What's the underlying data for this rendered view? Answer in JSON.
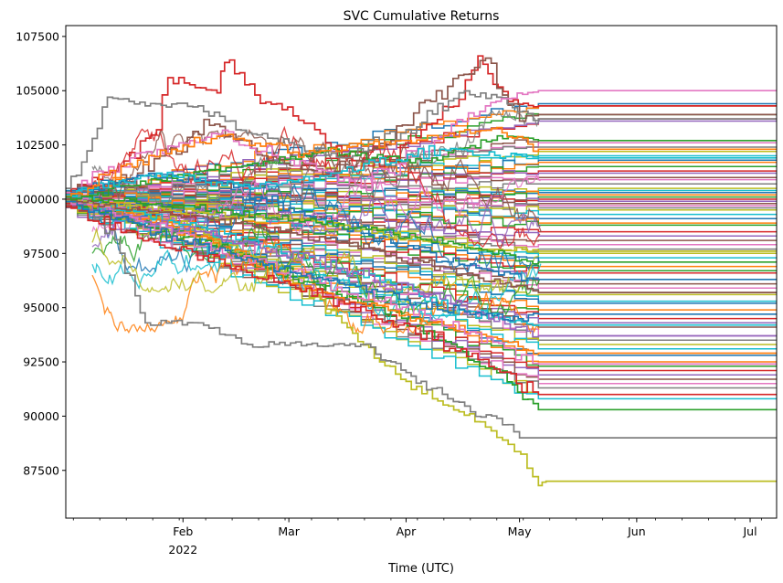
{
  "chart_data": {
    "type": "line",
    "title": "SVC Cumulative Returns",
    "xlabel": "Time (UTC)",
    "ylabel": "",
    "ylim": [
      85300,
      108000
    ],
    "xlim": [
      "2022-01-01",
      "2022-07-08"
    ],
    "yticks": [
      {
        "value": 87500,
        "label": "87500"
      },
      {
        "value": 90000,
        "label": "90000"
      },
      {
        "value": 92500,
        "label": "92500"
      },
      {
        "value": 95000,
        "label": "95000"
      },
      {
        "value": 97500,
        "label": "97500"
      },
      {
        "value": 100000,
        "label": "100000"
      },
      {
        "value": 102500,
        "label": "102500"
      },
      {
        "value": 105000,
        "label": "105000"
      },
      {
        "value": 107500,
        "label": "107500"
      }
    ],
    "xticks": [
      {
        "date": "2022-02-01",
        "label": "Feb",
        "sublabel": "2022"
      },
      {
        "date": "2022-03-01",
        "label": "Mar",
        "sublabel": ""
      },
      {
        "date": "2022-04-01",
        "label": "Apr",
        "sublabel": ""
      },
      {
        "date": "2022-05-01",
        "label": "May",
        "sublabel": ""
      },
      {
        "date": "2022-06-01",
        "label": "Jun",
        "sublabel": ""
      },
      {
        "date": "2022-07-01",
        "label": "Jul",
        "sublabel": ""
      }
    ],
    "grid": false,
    "legend": "none",
    "palette": [
      "#1f77b4",
      "#ff7f0e",
      "#2ca02c",
      "#d62728",
      "#9467bd",
      "#8c564b",
      "#e377c2",
      "#7f7f7f",
      "#bcbd22",
      "#17becf"
    ],
    "series": [
      {
        "color": "#bcbd22",
        "points": [
          [
            "2022-01-01",
            100000
          ],
          [
            "2022-01-20",
            99400
          ],
          [
            "2022-02-05",
            98600
          ],
          [
            "2022-02-20",
            97300
          ],
          [
            "2022-03-05",
            96000
          ],
          [
            "2022-03-15",
            94300
          ],
          [
            "2022-03-25",
            92500
          ],
          [
            "2022-04-01",
            91600
          ],
          [
            "2022-04-08",
            90800
          ],
          [
            "2022-04-15",
            90200
          ],
          [
            "2022-04-22",
            89500
          ],
          [
            "2022-04-28",
            88700
          ],
          [
            "2022-05-03",
            87600
          ],
          [
            "2022-05-06",
            86800
          ],
          [
            "2022-05-08",
            87000
          ],
          [
            "2022-07-08",
            87000
          ]
        ]
      },
      {
        "color": "#7f7f7f",
        "points": [
          [
            "2022-01-01",
            100300
          ],
          [
            "2022-01-10",
            99200
          ],
          [
            "2022-01-18",
            96500
          ],
          [
            "2022-01-22",
            94300
          ],
          [
            "2022-02-05",
            94300
          ],
          [
            "2022-02-15",
            93600
          ],
          [
            "2022-02-18",
            93300
          ],
          [
            "2022-03-20",
            93300
          ],
          [
            "2022-03-28",
            92500
          ],
          [
            "2022-04-05",
            91600
          ],
          [
            "2022-04-12",
            90800
          ],
          [
            "2022-04-18",
            90200
          ],
          [
            "2022-04-25",
            89900
          ],
          [
            "2022-05-01",
            89000
          ],
          [
            "2022-07-08",
            89000
          ]
        ]
      },
      {
        "color": "#2ca02c",
        "points": [
          [
            "2022-01-01",
            100100
          ],
          [
            "2022-01-20",
            98800
          ],
          [
            "2022-02-10",
            97800
          ],
          [
            "2022-03-05",
            96200
          ],
          [
            "2022-03-25",
            95000
          ],
          [
            "2022-04-10",
            93500
          ],
          [
            "2022-04-25",
            92000
          ],
          [
            "2022-05-06",
            90300
          ],
          [
            "2022-07-08",
            90300
          ]
        ]
      },
      {
        "color": "#d62728",
        "points": [
          [
            "2022-01-01",
            100200
          ],
          [
            "2022-01-15",
            101500
          ],
          [
            "2022-01-25",
            103200
          ],
          [
            "2022-01-28",
            105600
          ],
          [
            "2022-02-10",
            104900
          ],
          [
            "2022-02-12",
            106300
          ],
          [
            "2022-02-20",
            104800
          ],
          [
            "2022-03-05",
            103500
          ],
          [
            "2022-03-15",
            102000
          ],
          [
            "2022-03-25",
            101500
          ],
          [
            "2022-04-05",
            103200
          ],
          [
            "2022-04-15",
            104600
          ],
          [
            "2022-04-20",
            106600
          ],
          [
            "2022-04-28",
            104500
          ],
          [
            "2022-05-06",
            104300
          ],
          [
            "2022-07-08",
            104300
          ]
        ]
      },
      {
        "color": "#8c564b",
        "points": [
          [
            "2022-01-01",
            100000
          ],
          [
            "2022-01-20",
            101200
          ],
          [
            "2022-02-08",
            103400
          ],
          [
            "2022-02-22",
            102000
          ],
          [
            "2022-03-10",
            101100
          ],
          [
            "2022-03-28",
            102700
          ],
          [
            "2022-04-12",
            105200
          ],
          [
            "2022-04-22",
            106500
          ],
          [
            "2022-05-01",
            103600
          ],
          [
            "2022-05-06",
            103900
          ],
          [
            "2022-07-08",
            103900
          ]
        ]
      },
      {
        "color": "#7f7f7f",
        "points": [
          [
            "2022-01-01",
            100500
          ],
          [
            "2022-01-08",
            102800
          ],
          [
            "2022-01-12",
            104700
          ],
          [
            "2022-01-22",
            104300
          ],
          [
            "2022-02-05",
            104300
          ],
          [
            "2022-02-15",
            103200
          ],
          [
            "2022-03-01",
            102600
          ],
          [
            "2022-03-15",
            101900
          ],
          [
            "2022-04-01",
            103200
          ],
          [
            "2022-04-15",
            104900
          ],
          [
            "2022-04-25",
            104700
          ],
          [
            "2022-05-06",
            103700
          ],
          [
            "2022-07-08",
            103700
          ]
        ]
      },
      {
        "color": "#e377c2",
        "points": [
          [
            "2022-01-01",
            100300
          ],
          [
            "2022-01-18",
            101900
          ],
          [
            "2022-02-10",
            103000
          ],
          [
            "2022-03-01",
            101800
          ],
          [
            "2022-03-20",
            100600
          ],
          [
            "2022-04-10",
            102900
          ],
          [
            "2022-04-22",
            104300
          ],
          [
            "2022-05-06",
            105000
          ],
          [
            "2022-07-08",
            105000
          ]
        ]
      },
      {
        "color": "#ff7f0e",
        "points": [
          [
            "2022-01-01",
            100000
          ],
          [
            "2022-01-22",
            99100
          ],
          [
            "2022-02-12",
            97800
          ],
          [
            "2022-03-01",
            96100
          ],
          [
            "2022-03-20",
            95200
          ],
          [
            "2022-04-08",
            94300
          ],
          [
            "2022-04-28",
            93400
          ],
          [
            "2022-05-06",
            92900
          ],
          [
            "2022-07-08",
            92900
          ]
        ]
      },
      {
        "color": "#17becf",
        "points": [
          [
            "2022-01-01",
            100100
          ],
          [
            "2022-01-22",
            99300
          ],
          [
            "2022-02-12",
            98400
          ],
          [
            "2022-03-05",
            97200
          ],
          [
            "2022-03-28",
            96100
          ],
          [
            "2022-04-15",
            94900
          ],
          [
            "2022-05-06",
            94200
          ],
          [
            "2022-07-08",
            94200
          ]
        ]
      },
      {
        "color": "#1f77b4",
        "points": [
          [
            "2022-01-01",
            100200
          ],
          [
            "2022-01-20",
            101100
          ],
          [
            "2022-02-10",
            100800
          ],
          [
            "2022-03-01",
            99600
          ],
          [
            "2022-03-25",
            98300
          ],
          [
            "2022-04-15",
            97000
          ],
          [
            "2022-05-06",
            96300
          ],
          [
            "2022-07-08",
            96300
          ]
        ]
      },
      {
        "color": "#9467bd",
        "points": [
          [
            "2022-01-01",
            99900
          ],
          [
            "2022-01-25",
            98900
          ],
          [
            "2022-02-20",
            97900
          ],
          [
            "2022-03-15",
            96800
          ],
          [
            "2022-04-10",
            95400
          ],
          [
            "2022-04-30",
            94100
          ],
          [
            "2022-05-06",
            93700
          ],
          [
            "2022-07-08",
            93700
          ]
        ]
      },
      {
        "color": "#d62728",
        "points": [
          [
            "2022-01-01",
            99800
          ],
          [
            "2022-01-20",
            98200
          ],
          [
            "2022-02-15",
            96900
          ],
          [
            "2022-03-10",
            95500
          ],
          [
            "2022-03-30",
            94200
          ],
          [
            "2022-04-20",
            92600
          ],
          [
            "2022-05-06",
            91000
          ],
          [
            "2022-07-08",
            91000
          ]
        ]
      },
      {
        "color": "#2ca02c",
        "points": [
          [
            "2022-01-01",
            100000
          ],
          [
            "2022-01-25",
            100900
          ],
          [
            "2022-02-18",
            101600
          ],
          [
            "2022-03-10",
            102200
          ],
          [
            "2022-04-05",
            101700
          ],
          [
            "2022-04-28",
            102900
          ],
          [
            "2022-05-06",
            102700
          ],
          [
            "2022-07-08",
            102700
          ]
        ]
      },
      {
        "color": "#bcbd22",
        "points": [
          [
            "2022-01-01",
            100000
          ],
          [
            "2022-01-15",
            99700
          ],
          [
            "2022-02-05",
            99400
          ],
          [
            "2022-02-28",
            99100
          ],
          [
            "2022-03-20",
            98600
          ],
          [
            "2022-04-10",
            97900
          ],
          [
            "2022-05-06",
            97600
          ],
          [
            "2022-07-08",
            97600
          ]
        ]
      },
      {
        "color": "#e377c2",
        "points": [
          [
            "2022-01-01",
            100100
          ],
          [
            "2022-01-20",
            99000
          ],
          [
            "2022-02-10",
            97700
          ],
          [
            "2022-03-05",
            96500
          ],
          [
            "2022-03-25",
            95300
          ],
          [
            "2022-04-15",
            94000
          ],
          [
            "2022-05-06",
            92400
          ],
          [
            "2022-07-08",
            92400
          ]
        ]
      },
      {
        "color": "#17becf",
        "points": [
          [
            "2022-01-01",
            100200
          ],
          [
            "2022-01-25",
            101200
          ],
          [
            "2022-02-20",
            100500
          ],
          [
            "2022-03-15",
            101300
          ],
          [
            "2022-04-10",
            102300
          ],
          [
            "2022-05-06",
            101900
          ],
          [
            "2022-07-08",
            101900
          ]
        ]
      },
      {
        "color": "#ff7f0e",
        "points": [
          [
            "2022-01-01",
            100100
          ],
          [
            "2022-01-20",
            101800
          ],
          [
            "2022-02-10",
            102900
          ],
          [
            "2022-03-05",
            102100
          ],
          [
            "2022-04-01",
            102700
          ],
          [
            "2022-04-25",
            103300
          ],
          [
            "2022-05-06",
            102300
          ],
          [
            "2022-07-08",
            102300
          ]
        ]
      },
      {
        "color": "#1f77b4",
        "points": [
          [
            "2022-01-01",
            99900
          ],
          [
            "2022-01-22",
            98700
          ],
          [
            "2022-02-15",
            97300
          ],
          [
            "2022-03-10",
            96300
          ],
          [
            "2022-04-05",
            95200
          ],
          [
            "2022-04-28",
            94400
          ],
          [
            "2022-05-06",
            94700
          ],
          [
            "2022-07-08",
            94700
          ]
        ]
      },
      {
        "color": "#8c564b",
        "points": [
          [
            "2022-01-01",
            100000
          ],
          [
            "2022-01-20",
            99500
          ],
          [
            "2022-02-15",
            98900
          ],
          [
            "2022-03-15",
            98000
          ],
          [
            "2022-04-10",
            96900
          ],
          [
            "2022-05-06",
            95700
          ],
          [
            "2022-07-08",
            95700
          ]
        ]
      },
      {
        "color": "#2ca02c",
        "points": [
          [
            "2022-01-01",
            100100
          ],
          [
            "2022-01-25",
            99800
          ],
          [
            "2022-02-20",
            99300
          ],
          [
            "2022-03-20",
            98700
          ],
          [
            "2022-04-15",
            97900
          ],
          [
            "2022-05-06",
            97100
          ],
          [
            "2022-07-08",
            97100
          ]
        ]
      }
    ],
    "flat_levels": [
      104400,
      104300,
      103900,
      103700,
      103600,
      102700,
      102600,
      102400,
      102200,
      102000,
      101800,
      101700,
      101500,
      101300,
      101200,
      101000,
      100900,
      100700,
      100500,
      100400,
      100300,
      100200,
      100100,
      100000,
      99900,
      99800,
      99700,
      99600,
      99500,
      99300,
      99100,
      98900,
      98800,
      98500,
      98300,
      98100,
      97900,
      97700,
      97500,
      97300,
      97100,
      96900,
      96700,
      96600,
      96300,
      96100,
      95900,
      95700,
      95600,
      95300,
      95200,
      94900,
      94700,
      94500,
      94300,
      94100,
      93700,
      93500,
      93300,
      93100,
      92800,
      92500,
      92300,
      92100,
      91900,
      91700,
      91500,
      91300,
      91000,
      90800
    ],
    "noise_bands": [
      {
        "color": "#d62728",
        "center": 100500,
        "spread": 2800
      },
      {
        "color": "#7f7f7f",
        "center": 101500,
        "spread": 2600
      },
      {
        "color": "#2ca02c",
        "center": 97500,
        "spread": 3000
      },
      {
        "color": "#1f77b4",
        "center": 99000,
        "spread": 2400
      },
      {
        "color": "#e377c2",
        "center": 98500,
        "spread": 2600
      },
      {
        "color": "#17becf",
        "center": 97000,
        "spread": 2800
      },
      {
        "color": "#ff7f0e",
        "center": 96500,
        "spread": 2700
      },
      {
        "color": "#8c564b",
        "center": 100000,
        "spread": 3200
      },
      {
        "color": "#9467bd",
        "center": 97800,
        "spread": 2200
      },
      {
        "color": "#bcbd22",
        "center": 98000,
        "spread": 2300
      }
    ]
  }
}
